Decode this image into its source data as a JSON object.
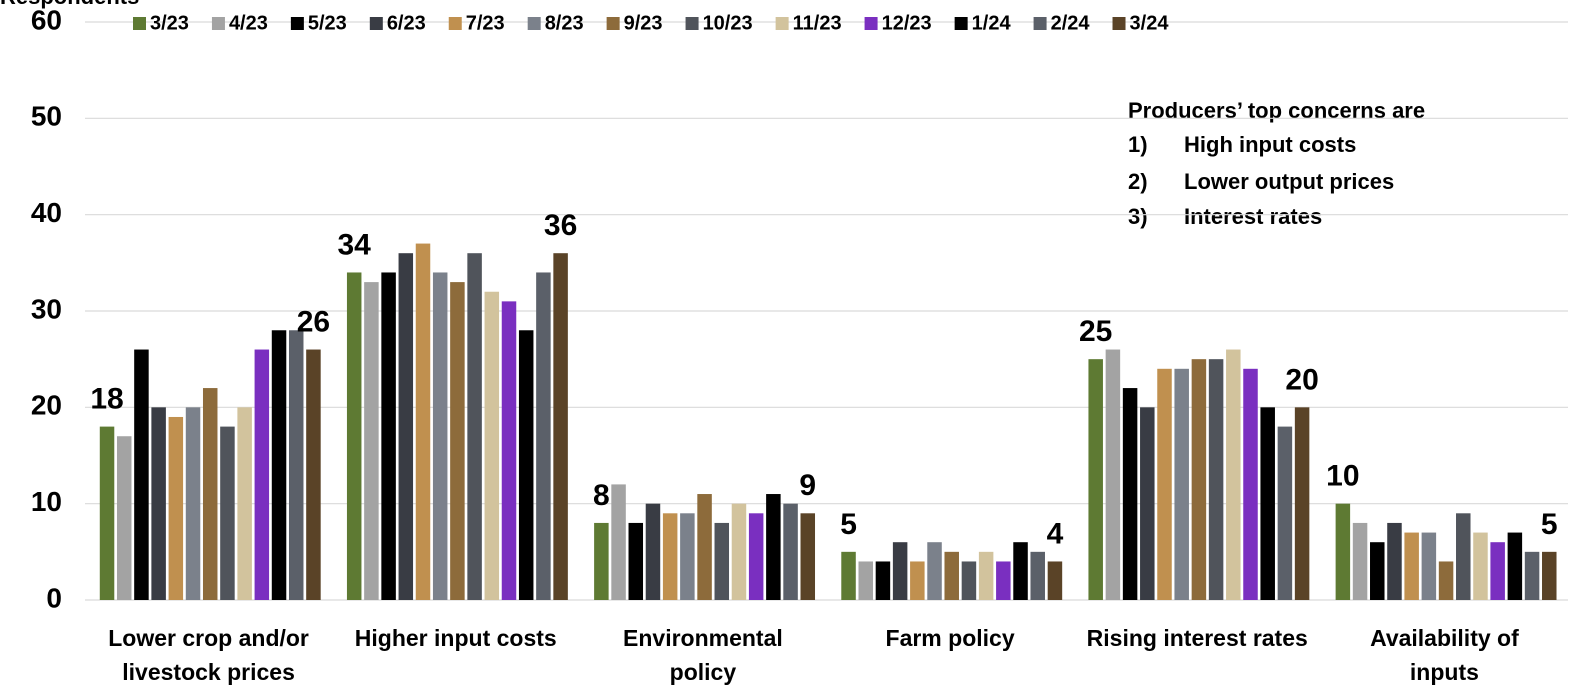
{
  "chart_data": {
    "type": "bar",
    "ylabel": "Respondents",
    "categories": [
      "Lower crop and/or\nlivestock prices",
      "Higher input costs",
      "Environmental\npolicy",
      "Farm policy",
      "Rising interest rates",
      "Availability of\ninputs"
    ],
    "series": [
      {
        "name": "3/23",
        "color": "#5e7a33",
        "values": [
          18,
          34,
          8,
          5,
          25,
          10
        ]
      },
      {
        "name": "4/23",
        "color": "#a3a3a3",
        "values": [
          17,
          33,
          12,
          4,
          26,
          8
        ]
      },
      {
        "name": "5/23",
        "color": "#000000",
        "values": [
          26,
          34,
          8,
          4,
          22,
          6
        ]
      },
      {
        "name": "6/23",
        "color": "#393c44",
        "values": [
          20,
          36,
          10,
          6,
          20,
          8
        ]
      },
      {
        "name": "7/23",
        "color": "#c0904f",
        "values": [
          19,
          37,
          9,
          4,
          24,
          7
        ]
      },
      {
        "name": "8/23",
        "color": "#7b818b",
        "values": [
          20,
          34,
          9,
          6,
          24,
          7
        ]
      },
      {
        "name": "9/23",
        "color": "#8d6b3b",
        "values": [
          22,
          33,
          11,
          5,
          25,
          4
        ]
      },
      {
        "name": "10/23",
        "color": "#50545b",
        "values": [
          18,
          36,
          8,
          4,
          25,
          9
        ]
      },
      {
        "name": "11/23",
        "color": "#d2c39d",
        "values": [
          20,
          32,
          10,
          5,
          26,
          7
        ]
      },
      {
        "name": "12/23",
        "color": "#7a2fc0",
        "values": [
          26,
          31,
          9,
          4,
          24,
          6
        ]
      },
      {
        "name": "1/24",
        "color": "#000000",
        "values": [
          28,
          28,
          11,
          6,
          20,
          7
        ]
      },
      {
        "name": "2/24",
        "color": "#5b6069",
        "values": [
          28,
          34,
          10,
          5,
          18,
          5
        ]
      },
      {
        "name": "3/24",
        "color": "#5a4327",
        "values": [
          26,
          36,
          9,
          4,
          20,
          5
        ]
      }
    ],
    "ylim": [
      0,
      60
    ],
    "yticks": [
      0,
      10,
      20,
      30,
      40,
      50,
      60
    ],
    "grid": true,
    "legend": "top",
    "annotation": {
      "heading": "Producers’ top concerns are",
      "items": [
        {
          "number": "1)",
          "text": "High input costs"
        },
        {
          "number": "2)",
          "text": "Lower output prices"
        },
        {
          "number": "3)",
          "text": "Interest rates"
        }
      ]
    }
  }
}
